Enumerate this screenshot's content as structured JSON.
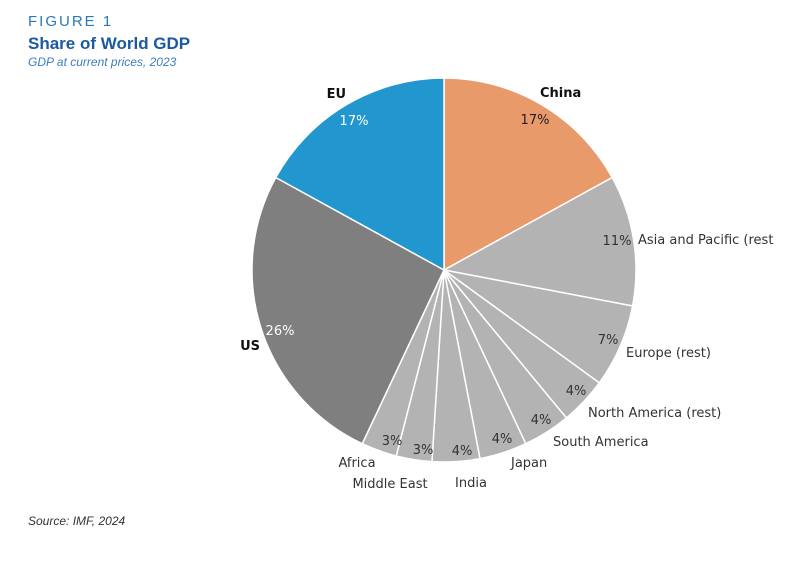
{
  "figure": {
    "label": "FIGURE 1",
    "title": "Share of World GDP",
    "subtitle": "GDP at current prices, 2023",
    "source": "Source: IMF, 2024"
  },
  "chart_data": {
    "type": "pie",
    "title": "Share of World GDP",
    "subtitle": "GDP at current prices, 2023",
    "slices": [
      {
        "name": "China",
        "value": 17,
        "label": "17%",
        "color": "#e99a6b"
      },
      {
        "name": "Asia and Pacific (rest)",
        "display_name": "Asia and Pacific (rest",
        "value": 11,
        "label": "11%",
        "color": "#b3b3b3"
      },
      {
        "name": "Europe (rest)",
        "value": 7,
        "label": "7%",
        "color": "#b3b3b3"
      },
      {
        "name": "North America (rest)",
        "value": 4,
        "label": "4%",
        "color": "#b3b3b3"
      },
      {
        "name": "South America",
        "value": 4,
        "label": "4%",
        "color": "#b3b3b3"
      },
      {
        "name": "Japan",
        "value": 4,
        "label": "4%",
        "color": "#b3b3b3"
      },
      {
        "name": "India",
        "value": 4,
        "label": "4%",
        "color": "#b3b3b3"
      },
      {
        "name": "Middle East",
        "value": 3,
        "label": "3%",
        "color": "#b3b3b3"
      },
      {
        "name": "Africa",
        "value": 3,
        "label": "3%",
        "color": "#b3b3b3"
      },
      {
        "name": "US",
        "value": 26,
        "label": "26%",
        "color": "#7f7f7f"
      },
      {
        "name": "EU",
        "value": 17,
        "label": "17%",
        "color": "#2196cf"
      }
    ],
    "legend": "none"
  }
}
